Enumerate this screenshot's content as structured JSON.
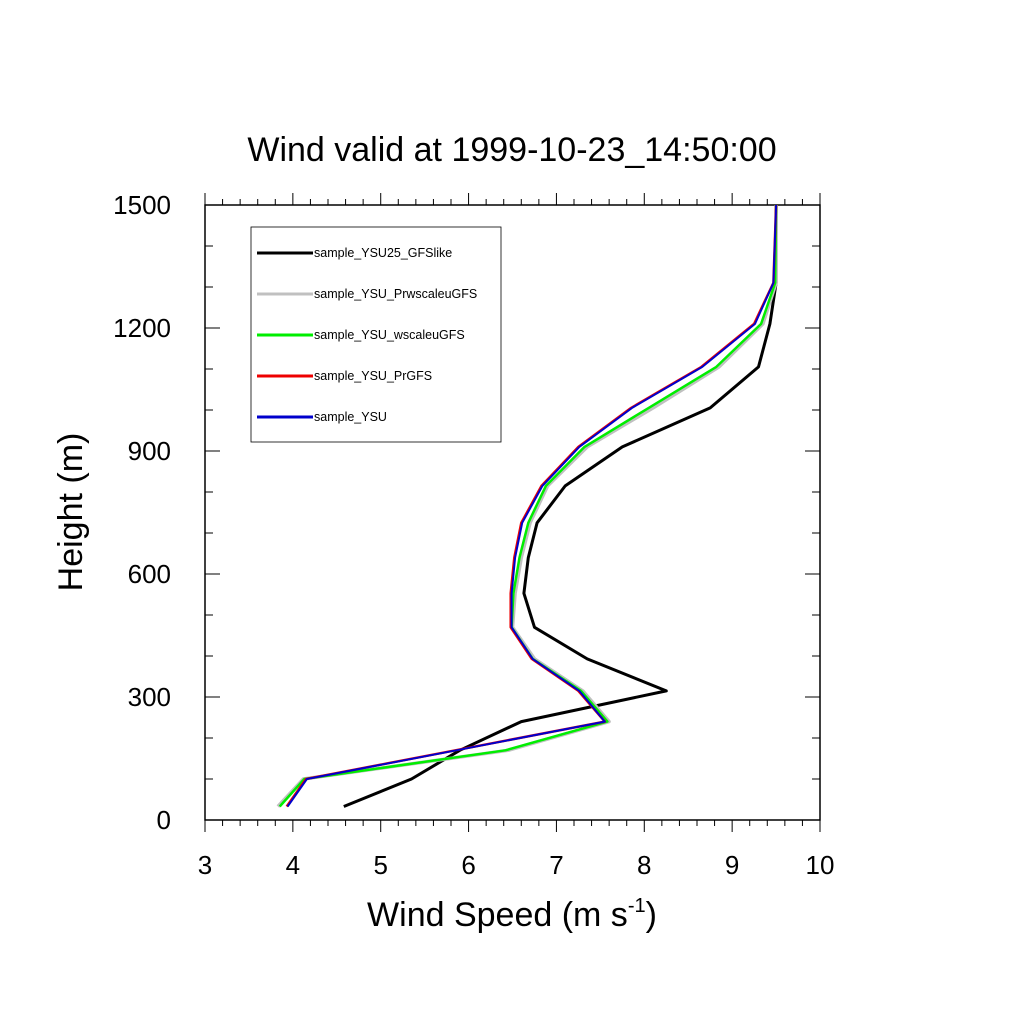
{
  "chart_data": {
    "type": "line",
    "title": "Wind valid at 1999-10-23_14:50:00",
    "xlabel": "Wind Speed (m s",
    "xlabel_exponent": "-1",
    "xlabel_close": ")",
    "ylabel": "Height (m)",
    "xlim": [
      3,
      10
    ],
    "ylim": [
      0,
      1500
    ],
    "xticks": [
      3,
      4,
      5,
      6,
      7,
      8,
      9,
      10
    ],
    "yticks": [
      0,
      300,
      600,
      900,
      1200,
      1500
    ],
    "legend_position": "top-left",
    "series": [
      {
        "name": "sample_YSU25_GFSlike",
        "color": "#000000",
        "points": [
          [
            4.58,
            33
          ],
          [
            5.35,
            100
          ],
          [
            5.9,
            170
          ],
          [
            6.6,
            240
          ],
          [
            8.25,
            315
          ],
          [
            7.35,
            393
          ],
          [
            6.75,
            470
          ],
          [
            6.63,
            553
          ],
          [
            6.68,
            640
          ],
          [
            6.78,
            725
          ],
          [
            7.1,
            815
          ],
          [
            7.75,
            910
          ],
          [
            8.75,
            1005
          ],
          [
            9.3,
            1105
          ],
          [
            9.43,
            1210
          ],
          [
            9.5,
            1310
          ],
          [
            9.5,
            1500
          ]
        ]
      },
      {
        "name": "sample_YSU_PrwscaleuGFS",
        "color": "#c0c0c0",
        "points": [
          [
            3.83,
            33
          ],
          [
            4.12,
            100
          ],
          [
            6.45,
            170
          ],
          [
            7.6,
            240
          ],
          [
            7.3,
            315
          ],
          [
            6.75,
            393
          ],
          [
            6.5,
            470
          ],
          [
            6.53,
            553
          ],
          [
            6.6,
            640
          ],
          [
            6.7,
            725
          ],
          [
            6.9,
            815
          ],
          [
            7.35,
            910
          ],
          [
            8.1,
            1005
          ],
          [
            8.85,
            1105
          ],
          [
            9.35,
            1210
          ],
          [
            9.5,
            1310
          ],
          [
            9.5,
            1500
          ]
        ]
      },
      {
        "name": "sample_YSU_wscaleuGFS",
        "color": "#00ee00",
        "points": [
          [
            3.85,
            33
          ],
          [
            4.13,
            100
          ],
          [
            6.42,
            170
          ],
          [
            7.58,
            240
          ],
          [
            7.28,
            315
          ],
          [
            6.73,
            393
          ],
          [
            6.49,
            470
          ],
          [
            6.51,
            553
          ],
          [
            6.58,
            640
          ],
          [
            6.68,
            725
          ],
          [
            6.88,
            815
          ],
          [
            7.32,
            910
          ],
          [
            8.05,
            1005
          ],
          [
            8.82,
            1105
          ],
          [
            9.33,
            1210
          ],
          [
            9.49,
            1310
          ],
          [
            9.5,
            1500
          ]
        ]
      },
      {
        "name": "sample_YSU_PrGFS",
        "color": "#ee0000",
        "points": [
          [
            3.93,
            33
          ],
          [
            4.15,
            100
          ],
          [
            5.85,
            170
          ],
          [
            7.55,
            240
          ],
          [
            7.25,
            315
          ],
          [
            6.72,
            393
          ],
          [
            6.48,
            470
          ],
          [
            6.48,
            553
          ],
          [
            6.52,
            640
          ],
          [
            6.6,
            725
          ],
          [
            6.83,
            815
          ],
          [
            7.25,
            910
          ],
          [
            7.85,
            1005
          ],
          [
            8.65,
            1105
          ],
          [
            9.25,
            1210
          ],
          [
            9.47,
            1310
          ],
          [
            9.5,
            1500
          ]
        ]
      },
      {
        "name": "sample_YSU",
        "color": "#0000cc",
        "points": [
          [
            3.94,
            33
          ],
          [
            4.16,
            100
          ],
          [
            5.86,
            170
          ],
          [
            7.55,
            240
          ],
          [
            7.26,
            315
          ],
          [
            6.73,
            393
          ],
          [
            6.49,
            470
          ],
          [
            6.49,
            553
          ],
          [
            6.53,
            640
          ],
          [
            6.61,
            725
          ],
          [
            6.84,
            815
          ],
          [
            7.26,
            910
          ],
          [
            7.86,
            1005
          ],
          [
            8.66,
            1105
          ],
          [
            9.26,
            1210
          ],
          [
            9.47,
            1310
          ],
          [
            9.5,
            1500
          ]
        ]
      }
    ]
  }
}
